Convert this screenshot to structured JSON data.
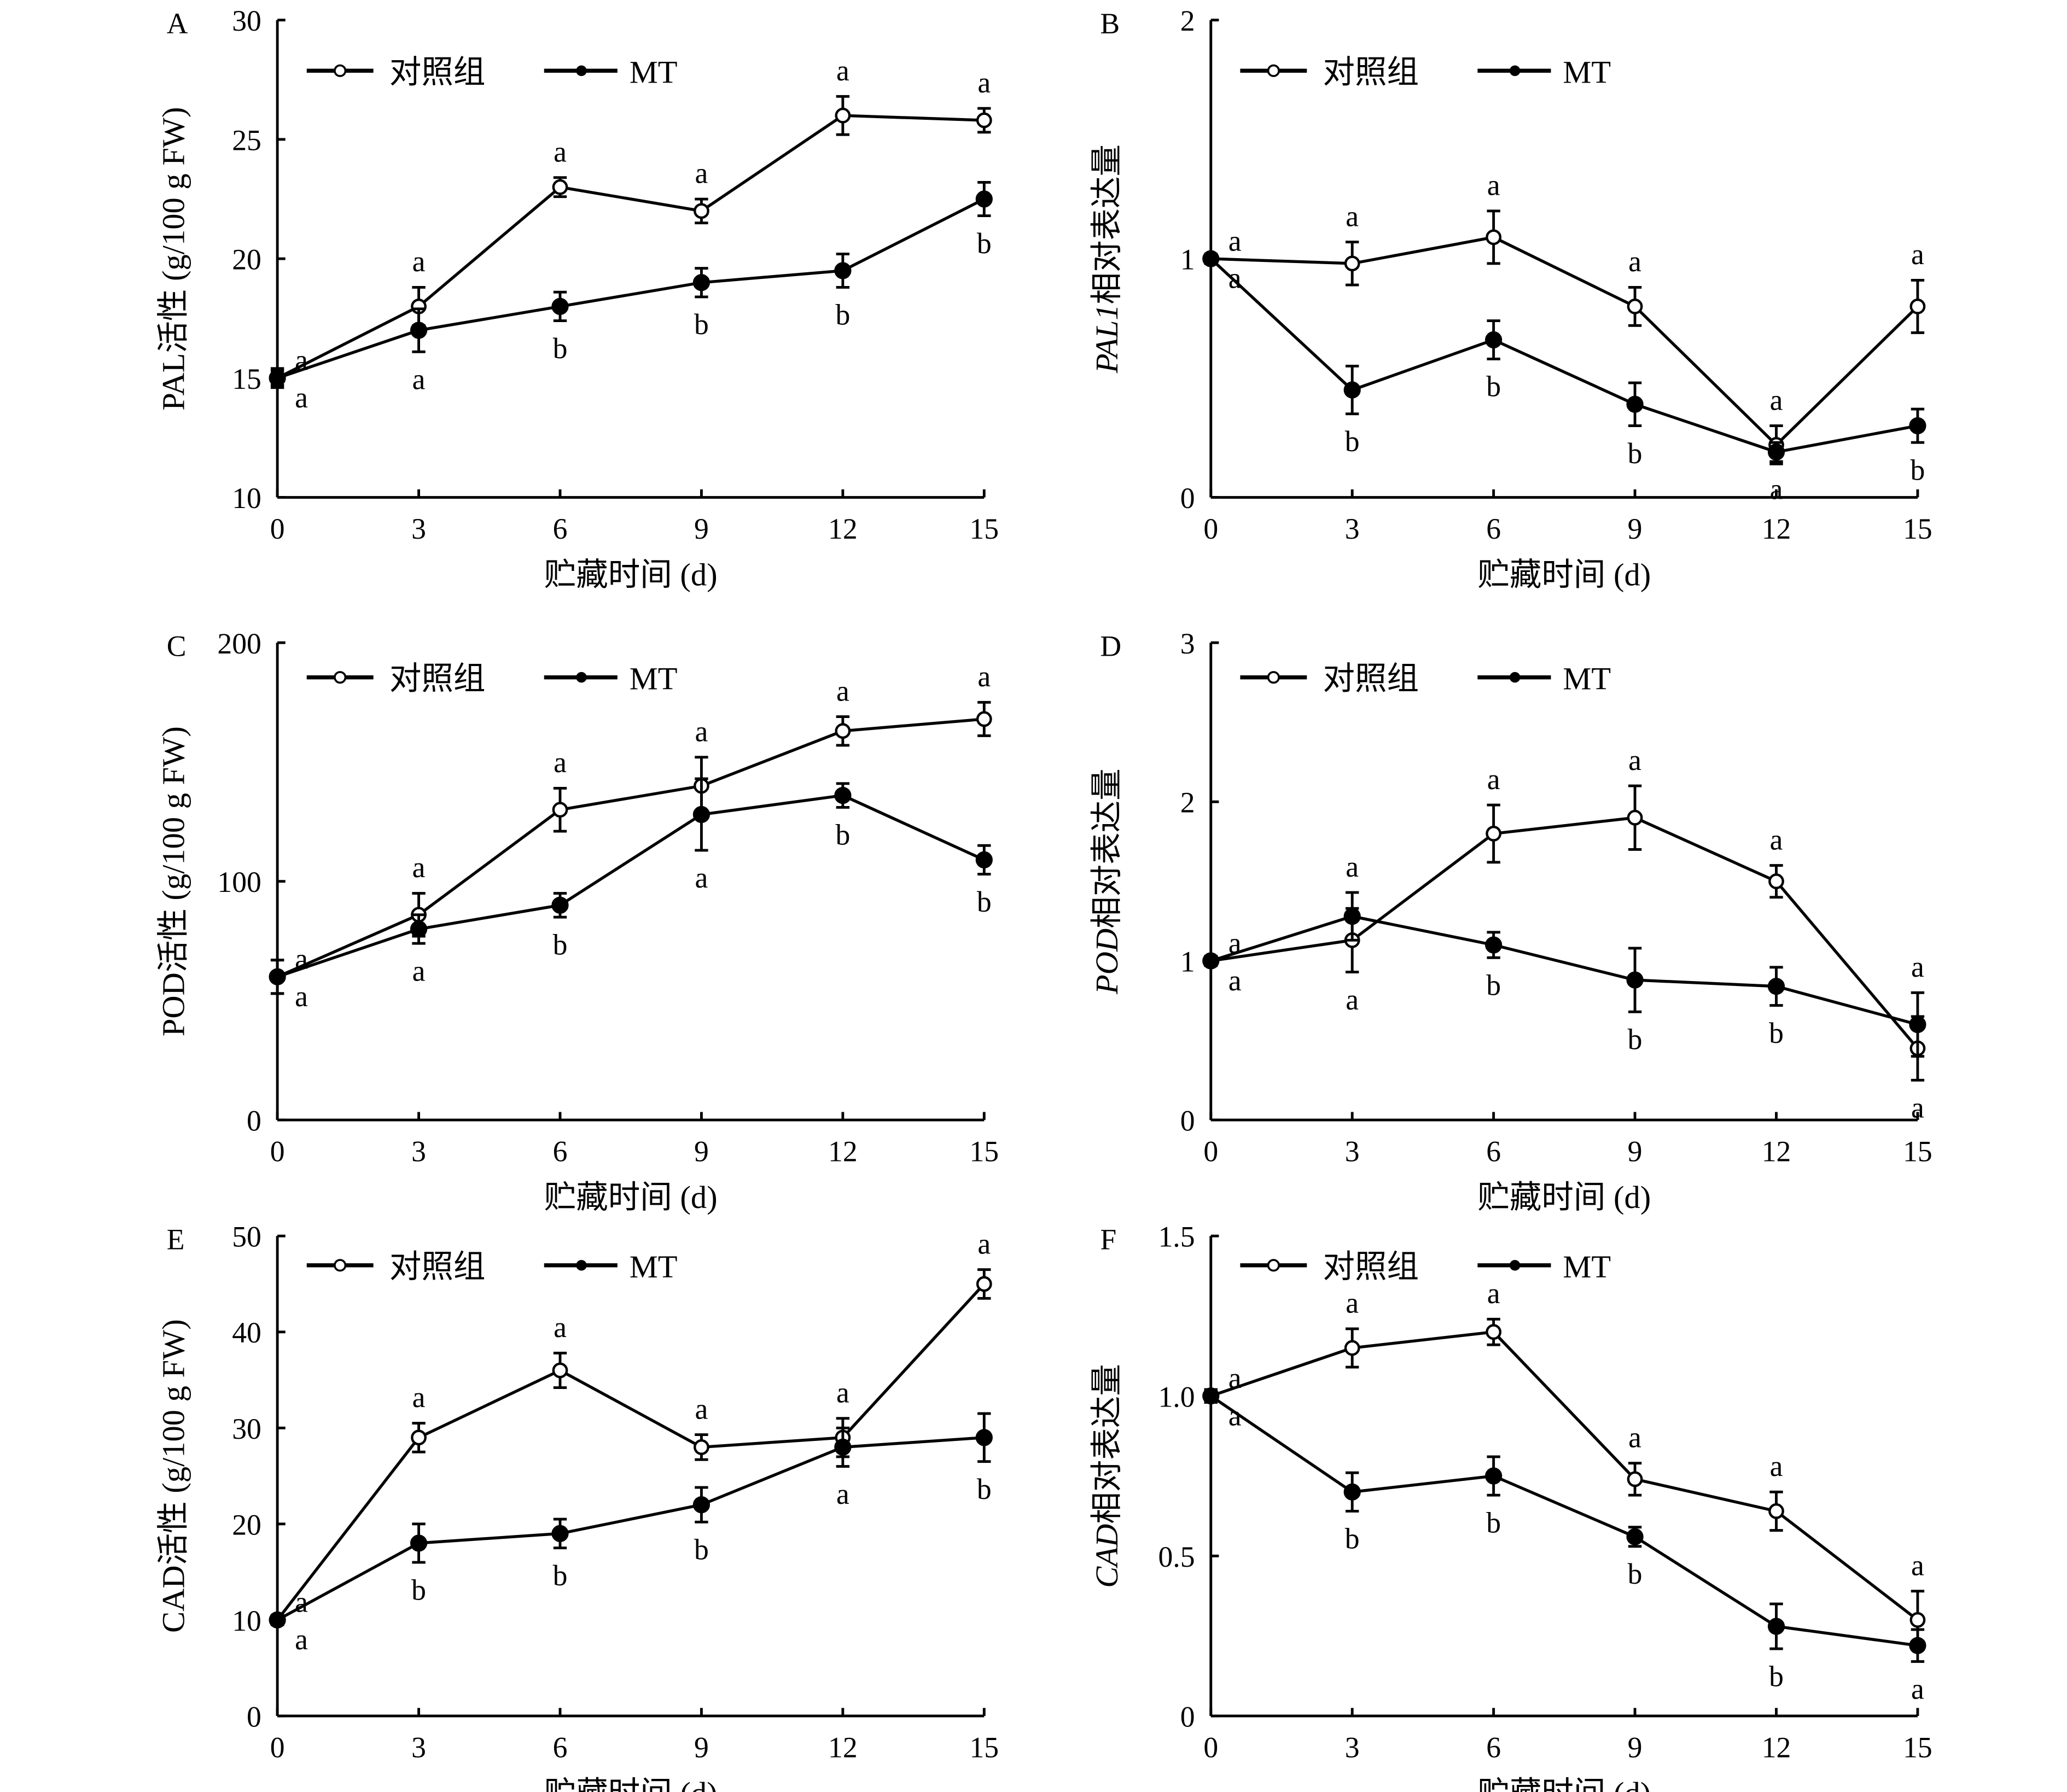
{
  "legend": {
    "control": "对照组",
    "treatment": "MT"
  },
  "colors": {
    "line": "#000000",
    "control_marker_fill": "#ffffff",
    "treatment_marker_fill": "#000000"
  },
  "chart_data": [
    {
      "panel": "A",
      "type": "line",
      "ylabel": "PAL活性 (g/100 g FW)",
      "ylabel_italic": "",
      "xlabel": "贮藏时间 (d)",
      "x": [
        0,
        3,
        6,
        9,
        12,
        15
      ],
      "ylim": [
        10,
        30
      ],
      "yticks": [
        "10",
        "15",
        "20",
        "25",
        "30"
      ],
      "xticks": [
        "0",
        "3",
        "6",
        "9",
        "12",
        "15"
      ],
      "legend_position": "top-left",
      "series": [
        {
          "name": "对照组",
          "values": [
            15,
            18,
            23,
            22,
            26,
            25.8
          ],
          "errors": [
            0.4,
            0.8,
            0.4,
            0.5,
            0.8,
            0.5
          ],
          "letters": [
            "a",
            "a",
            "a",
            "a",
            "a",
            "a"
          ]
        },
        {
          "name": "MT",
          "values": [
            15,
            17,
            18,
            19,
            19.5,
            22.5
          ],
          "errors": [
            0.3,
            0.9,
            0.6,
            0.6,
            0.7,
            0.7
          ],
          "letters": [
            "a",
            "a",
            "b",
            "b",
            "b",
            "b"
          ]
        }
      ]
    },
    {
      "panel": "B",
      "type": "line",
      "ylabel": "相对表达量",
      "ylabel_italic": "PAL1",
      "xlabel": "贮藏时间 (d)",
      "x": [
        0,
        3,
        6,
        9,
        12,
        15
      ],
      "ylim": [
        0,
        2
      ],
      "yticks": [
        "0",
        "1",
        "2"
      ],
      "xticks": [
        "0",
        "3",
        "6",
        "9",
        "12",
        "15"
      ],
      "legend_position": "top-left",
      "series": [
        {
          "name": "对照组",
          "values": [
            1,
            0.98,
            1.09,
            0.8,
            0.22,
            0.8
          ],
          "errors": [
            0.02,
            0.09,
            0.11,
            0.08,
            0.08,
            0.11
          ],
          "letters": [
            "a",
            "a",
            "a",
            "a",
            "a",
            "a"
          ]
        },
        {
          "name": "MT",
          "values": [
            1,
            0.45,
            0.66,
            0.39,
            0.19,
            0.3
          ],
          "errors": [
            0.02,
            0.1,
            0.08,
            0.09,
            0.04,
            0.07
          ],
          "letters": [
            "a",
            "b",
            "b",
            "b",
            "a",
            "b"
          ]
        }
      ]
    },
    {
      "panel": "C",
      "type": "line",
      "ylabel": "POD活性 (g/100 g FW)",
      "ylabel_italic": "",
      "xlabel": "贮藏时间 (d)",
      "x": [
        0,
        3,
        6,
        9,
        12,
        15
      ],
      "ylim": [
        0,
        200
      ],
      "yticks": [
        "0",
        "100",
        "200"
      ],
      "xticks": [
        "0",
        "3",
        "6",
        "9",
        "12",
        "15"
      ],
      "legend_position": "top-left",
      "series": [
        {
          "name": "对照组",
          "values": [
            60,
            86,
            130,
            140,
            163,
            168
          ],
          "errors": [
            7,
            9,
            9,
            12,
            6,
            7
          ],
          "letters": [
            "a",
            "a",
            "a",
            "a",
            "a",
            "a"
          ]
        },
        {
          "name": "MT",
          "values": [
            60,
            80,
            90,
            128,
            136,
            109
          ],
          "errors": [
            7,
            6,
            5,
            15,
            5,
            6
          ],
          "letters": [
            "a",
            "a",
            "b",
            "a",
            "b",
            "b"
          ]
        }
      ]
    },
    {
      "panel": "D",
      "type": "line",
      "ylabel": "相对表达量",
      "ylabel_italic": "POD",
      "xlabel": "贮藏时间 (d)",
      "x": [
        0,
        3,
        6,
        9,
        12,
        15
      ],
      "ylim": [
        0,
        3
      ],
      "yticks": [
        "0",
        "1",
        "2",
        "3"
      ],
      "xticks": [
        "0",
        "3",
        "6",
        "9",
        "12",
        "15"
      ],
      "legend_position": "top-left",
      "series": [
        {
          "name": "对照组",
          "values": [
            1,
            1.13,
            1.8,
            1.9,
            1.5,
            0.45
          ],
          "errors": [
            0.03,
            0.2,
            0.18,
            0.2,
            0.1,
            0.2
          ],
          "letters": [
            "a",
            "a",
            "a",
            "a",
            "a",
            "a"
          ]
        },
        {
          "name": "MT",
          "values": [
            1,
            1.28,
            1.1,
            0.88,
            0.84,
            0.6
          ],
          "errors": [
            0.03,
            0.15,
            0.08,
            0.2,
            0.12,
            0.2
          ],
          "letters": [
            "a",
            "a",
            "b",
            "b",
            "b",
            "a"
          ]
        }
      ]
    },
    {
      "panel": "E",
      "type": "line",
      "ylabel": "CAD活性 (g/100 g FW)",
      "ylabel_italic": "",
      "xlabel": "贮藏时间 (d)",
      "x": [
        0,
        3,
        6,
        9,
        12,
        15
      ],
      "ylim": [
        0,
        50
      ],
      "yticks": [
        "0",
        "10",
        "20",
        "30",
        "40",
        "50"
      ],
      "xticks": [
        "0",
        "3",
        "6",
        "9",
        "12",
        "15"
      ],
      "legend_position": "top-left",
      "series": [
        {
          "name": "对照组",
          "values": [
            10,
            29,
            36,
            28,
            29,
            45
          ],
          "errors": [
            0.5,
            1.5,
            1.8,
            1.3,
            2,
            1.5
          ],
          "letters": [
            "a",
            "a",
            "a",
            "a",
            "a",
            "a"
          ]
        },
        {
          "name": "MT",
          "values": [
            10,
            18,
            19,
            22,
            28,
            29
          ],
          "errors": [
            0.5,
            2,
            1.5,
            1.8,
            2,
            2.5
          ],
          "letters": [
            "a",
            "b",
            "b",
            "b",
            "a",
            "b"
          ]
        }
      ]
    },
    {
      "panel": "F",
      "type": "line",
      "ylabel": "相对表达量",
      "ylabel_italic": "CAD",
      "xlabel": "贮藏时间 (d)",
      "x": [
        0,
        3,
        6,
        9,
        12,
        15
      ],
      "ylim": [
        0,
        1.5
      ],
      "yticks": [
        "0",
        "0.5",
        "1.0",
        "1.5"
      ],
      "xticks": [
        "0",
        "3",
        "6",
        "9",
        "12",
        "15"
      ],
      "legend_position": "top-left",
      "series": [
        {
          "name": "对照组",
          "values": [
            1,
            1.15,
            1.2,
            0.74,
            0.64,
            0.3
          ],
          "errors": [
            0.02,
            0.06,
            0.04,
            0.05,
            0.06,
            0.09
          ],
          "letters": [
            "a",
            "a",
            "a",
            "a",
            "a",
            "a"
          ]
        },
        {
          "name": "MT",
          "values": [
            1,
            0.7,
            0.75,
            0.56,
            0.28,
            0.22
          ],
          "errors": [
            0.02,
            0.06,
            0.06,
            0.03,
            0.07,
            0.05
          ],
          "letters": [
            "a",
            "b",
            "b",
            "b",
            "b",
            "a"
          ]
        }
      ]
    }
  ]
}
